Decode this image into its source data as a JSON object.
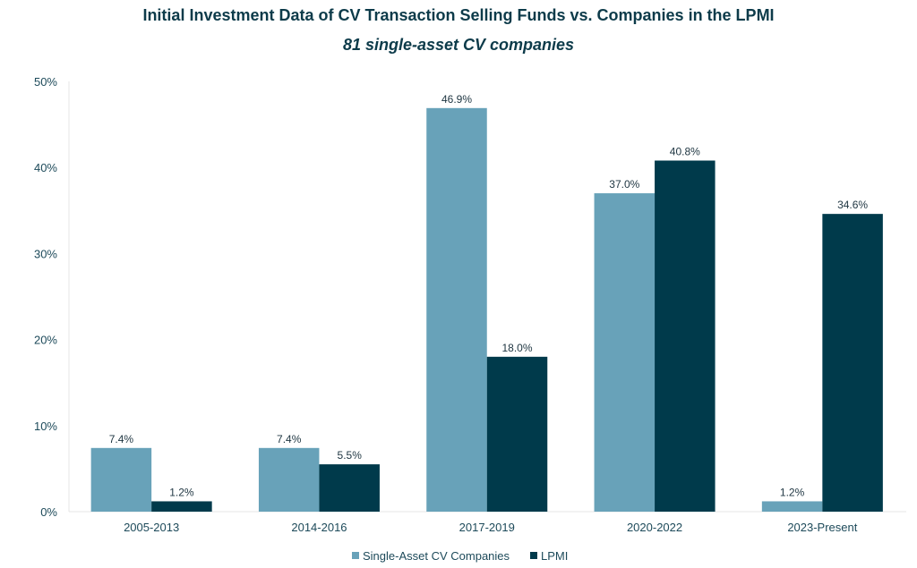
{
  "chart_data": {
    "type": "bar",
    "title": "Initial Investment Data of CV Transaction Selling Funds vs. Companies in the LPMI",
    "subtitle": "81 single-asset CV companies",
    "xlabel": "",
    "ylabel": "",
    "ylim": [
      0,
      50
    ],
    "yticks": [
      "0%",
      "10%",
      "20%",
      "30%",
      "40%",
      "50%"
    ],
    "grid": false,
    "legend_position": "bottom-center",
    "categories": [
      "2005-2013",
      "2014-2016",
      "2017-2019",
      "2020-2022",
      "2023-Present"
    ],
    "series": [
      {
        "name": "Single-Asset CV Companies",
        "color": "#68a2b9",
        "values": [
          7.4,
          7.4,
          46.9,
          37.0,
          1.2
        ],
        "labels": [
          "7.4%",
          "7.4%",
          "46.9%",
          "37.0%",
          "1.2%"
        ]
      },
      {
        "name": "LPMI",
        "color": "#003a4b",
        "values": [
          1.2,
          5.5,
          18.0,
          40.8,
          34.6
        ],
        "labels": [
          "1.2%",
          "5.5%",
          "18.0%",
          "40.8%",
          "34.6%"
        ]
      }
    ]
  }
}
